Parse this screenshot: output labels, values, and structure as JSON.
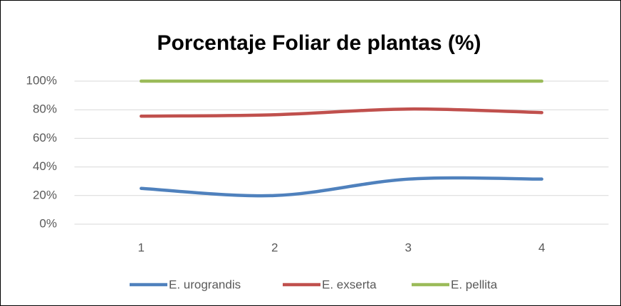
{
  "chart_data": {
    "type": "line",
    "title": "Porcentaje Foliar de plantas (%)",
    "categories": [
      "1",
      "2",
      "3",
      "4"
    ],
    "series": [
      {
        "name": "E. urograndis",
        "color": "#4f81bd",
        "values": [
          25,
          20,
          31.5,
          31.5
        ]
      },
      {
        "name": "E. exserta",
        "color": "#c0504d",
        "values": [
          75.5,
          76.5,
          80.5,
          78
        ]
      },
      {
        "name": "E. pellita",
        "color": "#9bbb59",
        "values": [
          100,
          100,
          100,
          100
        ]
      }
    ],
    "ylim": [
      0,
      100
    ],
    "yticks": [
      {
        "value": 0,
        "label": "0%"
      },
      {
        "value": 20,
        "label": "20%"
      },
      {
        "value": 40,
        "label": "40%"
      },
      {
        "value": 60,
        "label": "60%"
      },
      {
        "value": 80,
        "label": "80%"
      },
      {
        "value": 100,
        "label": "100%"
      }
    ],
    "grid": true,
    "legend": "bottom"
  }
}
